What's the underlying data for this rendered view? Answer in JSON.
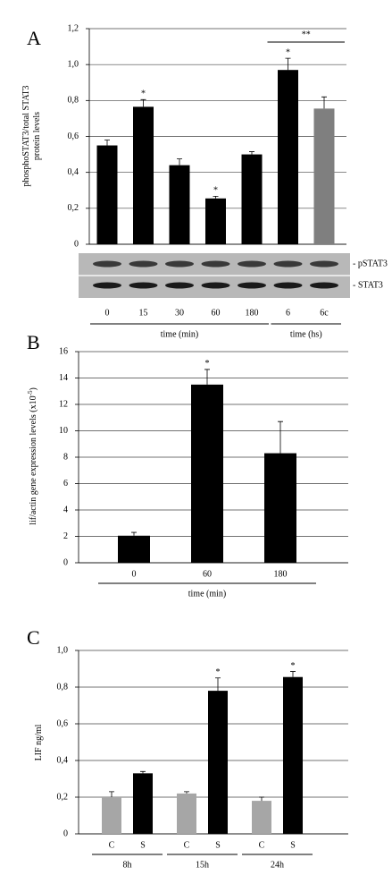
{
  "chart_data": [
    {
      "type": "bar",
      "panel": "A",
      "ylabel": [
        "phosphoSTAT3/total STAT3",
        "protein levels"
      ],
      "categories": [
        "0",
        "15",
        "30",
        "60",
        "180",
        "6",
        "6c"
      ],
      "values": [
        0.55,
        0.765,
        0.44,
        0.255,
        0.5,
        0.97,
        0.755
      ],
      "errors": [
        0.03,
        0.04,
        0.035,
        0.012,
        0.015,
        0.065,
        0.065
      ],
      "colors": [
        "#000000",
        "#000000",
        "#000000",
        "#000000",
        "#000000",
        "#000000",
        "#7f7f7f"
      ],
      "ylim": [
        0,
        1.2
      ],
      "yticks": [
        0,
        {
          "value": 0.2,
          "label": "0,2"
        },
        {
          "value": 0.4,
          "label": "0,4"
        },
        {
          "value": 0.6,
          "label": "0,6"
        },
        {
          "value": 0.8,
          "label": "0,8"
        },
        {
          "value": 1.0,
          "label": "1,0"
        },
        {
          "value": 1.2,
          "label": "1,2"
        }
      ],
      "grid": true,
      "annotations": [
        {
          "text": "*",
          "index": 1
        },
        {
          "text": "*",
          "index": 3
        },
        {
          "text": "*",
          "index": 5
        },
        {
          "text": "**",
          "span": [
            5,
            6
          ]
        }
      ],
      "groups": [
        {
          "label": "time (min)",
          "span": [
            0,
            4
          ]
        },
        {
          "label": "time (hs)",
          "span": [
            5,
            6
          ]
        }
      ],
      "blot_labels": [
        "- pSTAT3",
        "- STAT3"
      ]
    },
    {
      "type": "bar",
      "panel": "B",
      "ylabel": [
        "lif/actin gene expression levels (x10"
      ],
      "ylabel_superscript": "-5",
      "ylabel_suffix": ")",
      "categories": [
        "0",
        "60",
        "180"
      ],
      "values": [
        2.05,
        13.5,
        8.3
      ],
      "errors": [
        0.25,
        1.15,
        2.4
      ],
      "colors": [
        "#000000",
        "#000000",
        "#000000"
      ],
      "ylim": [
        0,
        16
      ],
      "yticks": [
        0,
        2,
        4,
        6,
        8,
        10,
        12,
        14,
        16
      ],
      "grid": true,
      "annotations": [
        {
          "text": "*",
          "index": 1
        }
      ],
      "groups": [
        {
          "label": "time (min)",
          "span": [
            0,
            2
          ]
        }
      ]
    },
    {
      "type": "bar",
      "panel": "C",
      "ylabel": [
        "LIF ng/ml"
      ],
      "categories": [
        "C",
        "S",
        "C",
        "S",
        "C",
        "S"
      ],
      "values": [
        0.2,
        0.33,
        0.22,
        0.78,
        0.18,
        0.855
      ],
      "errors": [
        0.03,
        0.01,
        0.01,
        0.07,
        0.02,
        0.03
      ],
      "colors": [
        "#a6a6a6",
        "#000000",
        "#a6a6a6",
        "#000000",
        "#a6a6a6",
        "#000000"
      ],
      "ylim": [
        0,
        1.0
      ],
      "yticks": [
        0,
        {
          "value": 0.2,
          "label": "0,2"
        },
        {
          "value": 0.4,
          "label": "0,4"
        },
        {
          "value": 0.6,
          "label": "0,6"
        },
        {
          "value": 0.8,
          "label": "0,8"
        },
        {
          "value": 1.0,
          "label": "1,0"
        }
      ],
      "grid": true,
      "annotations": [
        {
          "text": "*",
          "index": 3
        },
        {
          "text": "*",
          "index": 5
        }
      ],
      "groups": [
        {
          "label": "8h",
          "span": [
            0,
            1
          ]
        },
        {
          "label": "15h",
          "span": [
            2,
            3
          ]
        },
        {
          "label": "24h",
          "span": [
            4,
            5
          ]
        }
      ]
    }
  ]
}
